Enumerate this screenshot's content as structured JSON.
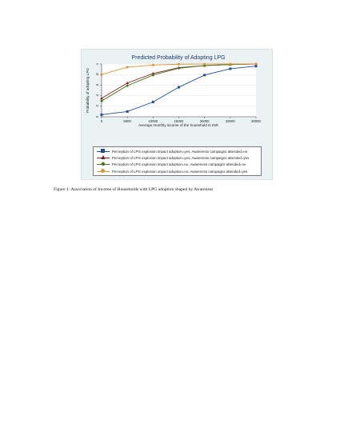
{
  "caption": "Figure 1: Association of Income of Households with LPG adoption shaped by Awareness",
  "chart_data": {
    "type": "line",
    "title": "Predicted Probability of Adopting LPG",
    "xlabel": "Average monthly income of the household in INR",
    "ylabel": "Probability of adopting LPG",
    "x": [
      0,
      5000,
      10000,
      15000,
      20000,
      25000,
      30000
    ],
    "x_tick_labels": [
      "0",
      "5000",
      "10000",
      "15000",
      "20000",
      "25000",
      "30000"
    ],
    "xlim": [
      0,
      30000
    ],
    "y_ticks": [
      0,
      0.2,
      0.4,
      0.6,
      0.8,
      1
    ],
    "y_tick_labels": [
      "0",
      ".2",
      ".4",
      ".6",
      ".8",
      "1"
    ],
    "ylim": [
      0,
      1
    ],
    "grid": "horizontal",
    "legend_position": "bottom",
    "series": [
      {
        "name": "Perception of LPG explosion impact adoption=yes, Awareness campaigns attended=no",
        "color": "#1f4e96",
        "marker": "square",
        "values": [
          0.04,
          0.1,
          0.28,
          0.56,
          0.79,
          0.91,
          0.96
        ]
      },
      {
        "name": "Perception of LPG explosion impact adoption=yes, Awareness campaigns attended=yes",
        "color": "#8b1a1a",
        "marker": "triangle",
        "values": [
          0.35,
          0.64,
          0.82,
          0.93,
          0.97,
          0.99,
          1.0
        ]
      },
      {
        "name": "Perception of LPG explosion impact adoption=no, Awareness campaigns attended=no",
        "color": "#3f7a1e",
        "marker": "diamond",
        "values": [
          0.3,
          0.59,
          0.79,
          0.92,
          0.97,
          0.99,
          1.0
        ]
      },
      {
        "name": "Perception of LPG explosion impact adoption=no, Awareness campaigns attended=yes",
        "color": "#e8902a",
        "marker": "circle",
        "values": [
          0.8,
          0.94,
          0.98,
          0.996,
          0.999,
          1.0,
          1.0
        ]
      }
    ]
  }
}
